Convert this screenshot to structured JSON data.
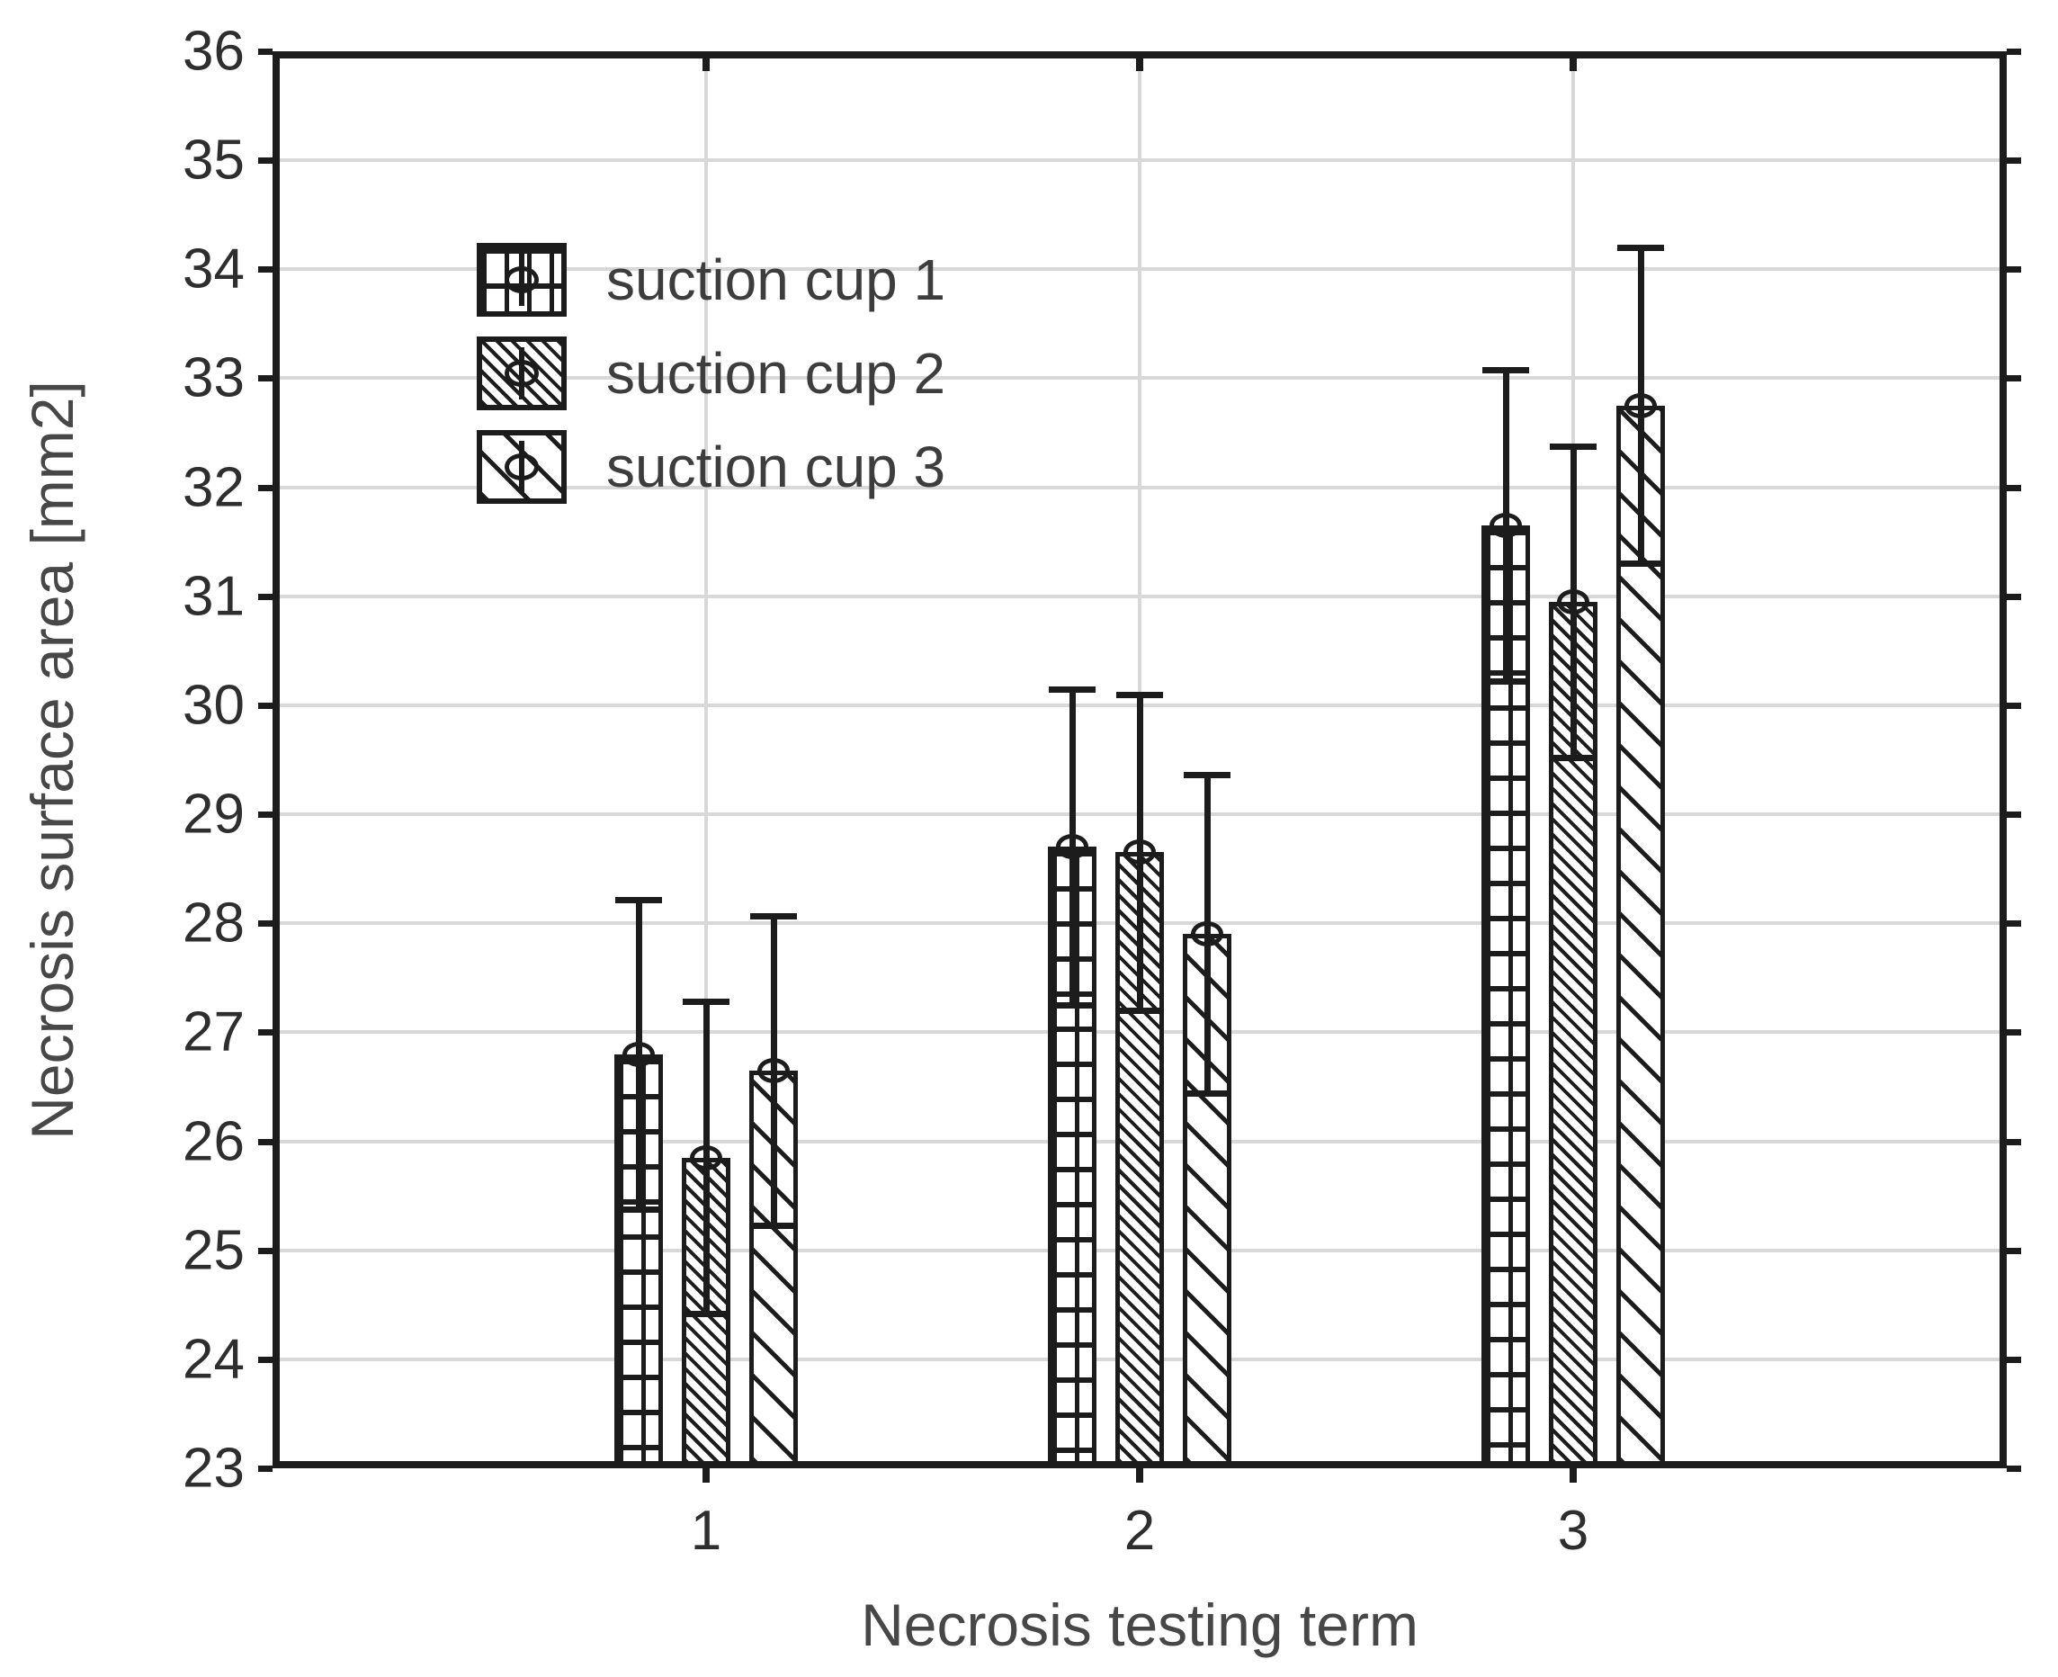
{
  "chart_data": {
    "type": "bar",
    "title": "",
    "xlabel": "Necrosis testing term",
    "ylabel": "Necrosis surface area [mm2]",
    "categories": [
      "1",
      "2",
      "3"
    ],
    "ylim": [
      23,
      36
    ],
    "yticks": [
      23,
      24,
      25,
      26,
      27,
      28,
      29,
      30,
      31,
      32,
      33,
      34,
      35,
      36
    ],
    "grid": "light gray horizontal lines at each y tick and vertical lines at each category",
    "legend_position": "upper left inside plot",
    "marker": "circle",
    "series": [
      {
        "name": "suction cup 1",
        "pattern": "grid-crosshatch",
        "values": [
          26.8,
          28.7,
          31.65
        ],
        "errors": [
          1.42,
          1.45,
          1.43
        ]
      },
      {
        "name": "suction cup 2",
        "pattern": "dense-diagonal",
        "values": [
          25.85,
          28.65,
          30.95
        ],
        "errors": [
          1.43,
          1.45,
          1.43
        ]
      },
      {
        "name": "suction cup 3",
        "pattern": "sparse-diagonal",
        "values": [
          26.65,
          27.9,
          32.75
        ],
        "errors": [
          1.42,
          1.46,
          1.45
        ]
      }
    ],
    "colors": {
      "line": "#1c1c1c",
      "grid": "#d8d8d8",
      "tick_text": "#2e2e2e",
      "title_text": "#474747",
      "background": "#ffffff"
    }
  }
}
